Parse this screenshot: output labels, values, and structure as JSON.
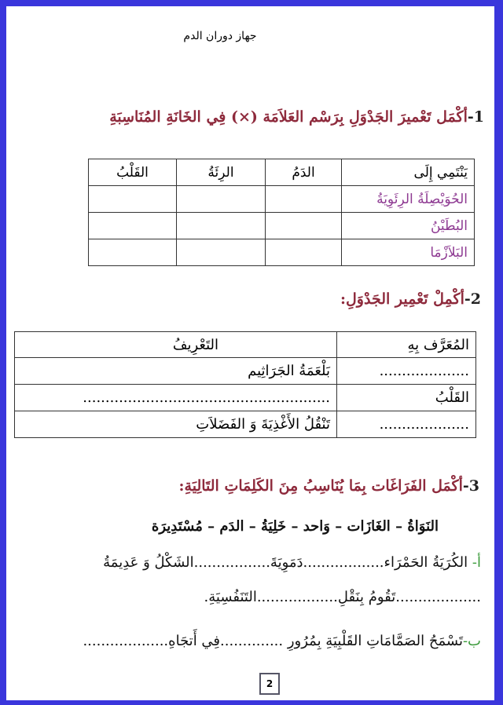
{
  "title": "جهاز دوران الدم",
  "section1": {
    "number": "1-",
    "heading": "أكْمَل تَعْميرَ الجَدْوَلِ بِرَسْم العَلاَمَة (×) فِي الخَانَةِ المُنَاسِبَةِ",
    "headers": [
      "يَنْتَمِي إِلَى",
      "الدَمُ",
      "الرِئَةُ",
      "القَلْبُ"
    ],
    "rows": [
      "الحُوَيْصِلَةُ الرِئَوِيَةُ",
      "البُطَيْنُ",
      "البَلاَزْمَا"
    ]
  },
  "section2": {
    "number": "2-",
    "heading": "أكْمِلْ تَعْمِير الجَدْوَلِ:",
    "headers": [
      "المُعَرَّف بِهِ",
      "التَعْرِيفُ"
    ],
    "rows": [
      {
        "term": "....................",
        "definition": "بَلْعَمَةُ الجَرَاثِيم"
      },
      {
        "term": "القَلْبُ",
        "definition": "......................................................."
      },
      {
        "term": "....................",
        "definition": "تَنْقُلُ الأَغْذِيَةَ وَ الفَضَلاَتِ"
      }
    ]
  },
  "section3": {
    "number": "3-",
    "heading": "أكْمَل الفَرَاغَات بِمَا يُنَاسِبُ مِنَ الكَلِمَاتِ التَالِيَةِ:",
    "words": "النَوَاةُ – الغَازَات – وَاحد – خَلِيَةُ – الدَم – مُسْتَدِيرَة",
    "a_label": "أ-",
    "a_line1": "الكُرَيَةُ الحَمْرَاء..................دَمَوِيَةَ.................الشَكْلُ وَ عَدِيمَةُ",
    "a_line2": "...................تَقُومُ بِنَقْلِ..................التَنَفُسِيَةِ.",
    "b_label": "ب-",
    "b_line": "تَسْمَحُ الصَمَّامَاتِ القَلْبِيَةِ بِمُرُورِ ..............فِي أَتجَاهِ..................."
  },
  "page_number": "2",
  "colors": {
    "frame": "#3a36dc",
    "heading": "#8e2a3c",
    "row_label": "#8e3a92",
    "item_label": "#3a9a3a"
  }
}
